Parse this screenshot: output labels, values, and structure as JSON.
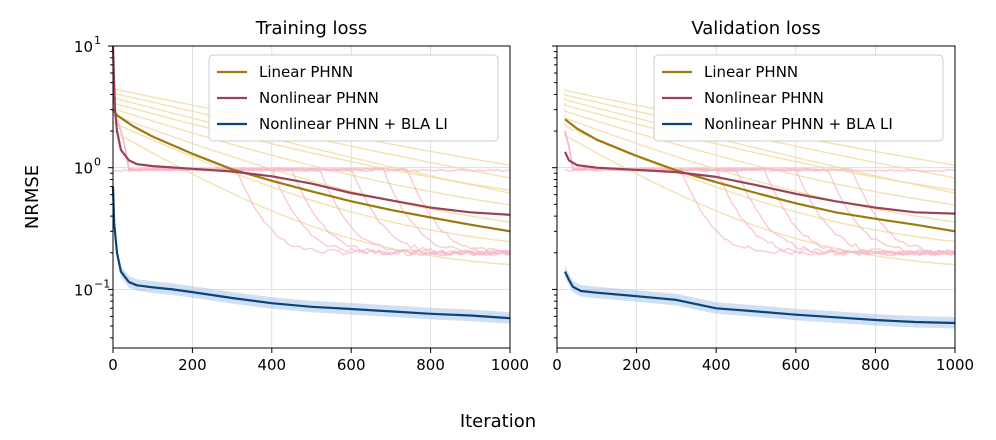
{
  "colors": {
    "linear": "#9c7a0e",
    "nonlinear": "#9b4256",
    "bla": "#08457e",
    "linear_faint": "#f0dba0",
    "nonlinear_faint": "#f5b9c7",
    "bla_band": "#a9c7e8"
  },
  "figure": {
    "xlabel": "Iteration",
    "ylabel": "NRMSE"
  },
  "chart_data": [
    {
      "type": "line",
      "title": "Training loss",
      "xlabel": "Iteration",
      "ylabel": "NRMSE",
      "yscale": "log",
      "xlim": [
        0,
        1000
      ],
      "ylim": [
        0.033,
        10
      ],
      "xticks": [
        0,
        200,
        400,
        600,
        800,
        1000
      ],
      "xtick_labels": [
        "0",
        "200",
        "400",
        "600",
        "800",
        "1000"
      ],
      "yticks": [
        0.1,
        1,
        10
      ],
      "ytick_base": [
        "10",
        "10",
        "10"
      ],
      "ytick_exp": [
        "−1",
        "0",
        "1"
      ],
      "grid": true,
      "legend": {
        "position": "top-right",
        "entries": [
          "Linear PHNN",
          "Nonlinear PHNN",
          "Nonlinear PHNN + BLA LI"
        ]
      },
      "series": [
        {
          "name": "Linear PHNN",
          "color_key": "linear",
          "x": [
            0,
            10,
            25,
            50,
            100,
            200,
            300,
            400,
            500,
            600,
            700,
            800,
            900,
            1000
          ],
          "y": [
            3.0,
            2.7,
            2.5,
            2.2,
            1.8,
            1.3,
            0.97,
            0.78,
            0.64,
            0.53,
            0.45,
            0.39,
            0.34,
            0.3
          ]
        },
        {
          "name": "Nonlinear PHNN",
          "color_key": "nonlinear",
          "x": [
            0,
            5,
            10,
            20,
            40,
            60,
            100,
            200,
            300,
            400,
            500,
            600,
            700,
            800,
            900,
            1000
          ],
          "y": [
            10.0,
            3.0,
            2.0,
            1.4,
            1.15,
            1.07,
            1.03,
            0.98,
            0.93,
            0.85,
            0.74,
            0.62,
            0.54,
            0.47,
            0.43,
            0.41
          ]
        },
        {
          "name": "Nonlinear PHNN + BLA LI",
          "color_key": "bla",
          "x": [
            0,
            3,
            10,
            20,
            40,
            60,
            100,
            150,
            200,
            300,
            400,
            500,
            600,
            700,
            800,
            900,
            1000
          ],
          "y": [
            0.7,
            0.35,
            0.2,
            0.14,
            0.115,
            0.108,
            0.104,
            0.1,
            0.095,
            0.085,
            0.077,
            0.072,
            0.069,
            0.066,
            0.063,
            0.061,
            0.058
          ]
        }
      ]
    },
    {
      "type": "line",
      "title": "Validation loss",
      "xlabel": "Iteration",
      "ylabel": "NRMSE",
      "yscale": "log",
      "xlim": [
        0,
        1000
      ],
      "ylim": [
        0.033,
        10
      ],
      "xticks": [
        0,
        200,
        400,
        600,
        800,
        1000
      ],
      "xtick_labels": [
        "0",
        "200",
        "400",
        "600",
        "800",
        "1000"
      ],
      "yticks": [
        0.1,
        1,
        10
      ],
      "grid": true,
      "legend": {
        "position": "top-right",
        "entries": [
          "Linear PHNN",
          "Nonlinear PHNN",
          "Nonlinear PHNN + BLA LI"
        ]
      },
      "series": [
        {
          "name": "Linear PHNN",
          "color_key": "linear",
          "x": [
            20,
            50,
            100,
            200,
            300,
            400,
            500,
            600,
            700,
            800,
            900,
            1000
          ],
          "y": [
            2.5,
            2.1,
            1.7,
            1.25,
            0.95,
            0.76,
            0.62,
            0.51,
            0.43,
            0.38,
            0.34,
            0.3
          ]
        },
        {
          "name": "Nonlinear PHNN",
          "color_key": "nonlinear",
          "x": [
            20,
            30,
            50,
            100,
            200,
            300,
            400,
            500,
            600,
            700,
            800,
            900,
            1000
          ],
          "y": [
            1.35,
            1.15,
            1.05,
            1.0,
            0.96,
            0.92,
            0.84,
            0.72,
            0.61,
            0.53,
            0.47,
            0.43,
            0.42
          ]
        },
        {
          "name": "Nonlinear PHNN + BLA LI",
          "color_key": "bla",
          "x": [
            20,
            30,
            40,
            60,
            100,
            200,
            300,
            400,
            500,
            600,
            700,
            800,
            900,
            1000
          ],
          "y": [
            0.14,
            0.12,
            0.105,
            0.097,
            0.094,
            0.088,
            0.082,
            0.07,
            0.066,
            0.062,
            0.059,
            0.056,
            0.054,
            0.053
          ]
        }
      ]
    }
  ]
}
